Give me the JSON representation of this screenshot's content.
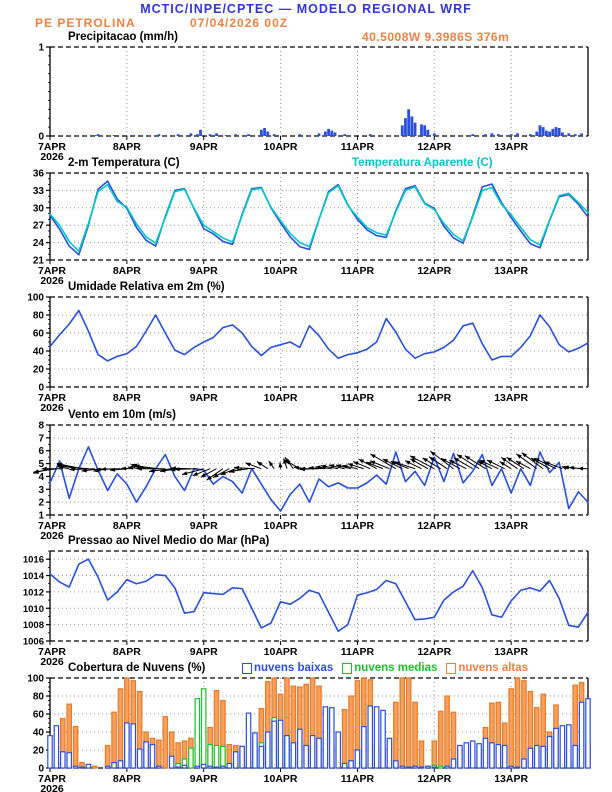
{
  "header": {
    "model_title": "MCTIC/INPE/CPTEC — MODELO REGIONAL WRF",
    "station": "PE PETROLINA",
    "run": "07/04/2026 00Z",
    "location": "40.5008W 9.3986S 376m"
  },
  "colors": {
    "header_blue": "#3434d6",
    "orange": "#f08142",
    "line_blue": "#2b4fdd",
    "cyan": "#00c8c8",
    "green": "#1dc12d",
    "bar_orange_fill": "#f5a05c",
    "bar_orange_edge": "#e87a28",
    "grid": "#999999",
    "black": "#000000"
  },
  "xaxis": {
    "labels": [
      "7APR",
      "8APR",
      "9APR",
      "10APR",
      "11APR",
      "12APR",
      "13APR"
    ],
    "year": "2026",
    "total_hours": 168
  },
  "chart_data": [
    {
      "type": "bar",
      "title": "Precipitacao (mm/h)",
      "ylabel": "",
      "xlabel": "",
      "ylim": [
        0,
        1
      ],
      "yticks": [
        0,
        1
      ],
      "yminor": 0.1,
      "bars_hour_value": [
        [
          14,
          0.01
        ],
        [
          15,
          0.02
        ],
        [
          20,
          0.01
        ],
        [
          26,
          0.01
        ],
        [
          28,
          0.01
        ],
        [
          34,
          0.02
        ],
        [
          36,
          0.01
        ],
        [
          40,
          0.02
        ],
        [
          44,
          0.03
        ],
        [
          46,
          0.02
        ],
        [
          47,
          0.07
        ],
        [
          50,
          0.02
        ],
        [
          52,
          0.03
        ],
        [
          55,
          0.01
        ],
        [
          58,
          0.02
        ],
        [
          62,
          0.02
        ],
        [
          66,
          0.07
        ],
        [
          67,
          0.09
        ],
        [
          68,
          0.05
        ],
        [
          70,
          0.02
        ],
        [
          78,
          0.02
        ],
        [
          84,
          0.03
        ],
        [
          86,
          0.05
        ],
        [
          87,
          0.08
        ],
        [
          88,
          0.06
        ],
        [
          89,
          0.04
        ],
        [
          92,
          0.02
        ],
        [
          100,
          0.02
        ],
        [
          110,
          0.12
        ],
        [
          111,
          0.2
        ],
        [
          112,
          0.3
        ],
        [
          113,
          0.22
        ],
        [
          114,
          0.15
        ],
        [
          116,
          0.13
        ],
        [
          117,
          0.12
        ],
        [
          118,
          0.07
        ],
        [
          120,
          0.03
        ],
        [
          126,
          0.01
        ],
        [
          132,
          0.02
        ],
        [
          136,
          0.02
        ],
        [
          138,
          0.03
        ],
        [
          140,
          0.02
        ],
        [
          144,
          0.02
        ],
        [
          146,
          0.03
        ],
        [
          150,
          0.02
        ],
        [
          152,
          0.05
        ],
        [
          153,
          0.12
        ],
        [
          154,
          0.1
        ],
        [
          155,
          0.06
        ],
        [
          156,
          0.05
        ],
        [
          157,
          0.08
        ],
        [
          158,
          0.1
        ],
        [
          159,
          0.09
        ],
        [
          160,
          0.04
        ],
        [
          162,
          0.03
        ],
        [
          164,
          0.02
        ],
        [
          166,
          0.03
        ]
      ]
    },
    {
      "type": "line",
      "title": "2-m Temperatura (C)",
      "right_title": "Temperatura Aparente (C)",
      "ylim": [
        21,
        36
      ],
      "yticks": [
        21,
        24,
        27,
        30,
        33,
        36
      ],
      "yminor": 1,
      "step_h": 3,
      "series": [
        {
          "name": "2-m Temperatura (C)",
          "color": "#2b4fdd",
          "values": [
            28.7,
            26.3,
            23.4,
            21.9,
            27.0,
            33.2,
            34.6,
            31.5,
            29.9,
            26.6,
            24.4,
            23.4,
            28.5,
            33.0,
            33.3,
            29.8,
            26.4,
            25.5,
            24.2,
            23.7,
            28.9,
            33.3,
            33.5,
            30.0,
            27.4,
            25.0,
            23.3,
            22.8,
            28.0,
            32.8,
            34.0,
            30.5,
            28.0,
            26.2,
            25.2,
            24.9,
            29.5,
            33.3,
            33.8,
            30.8,
            29.9,
            26.8,
            24.8,
            23.9,
            28.6,
            33.6,
            34.1,
            30.9,
            28.3,
            26.0,
            23.8,
            23.1,
            27.8,
            31.9,
            32.3,
            30.6,
            28.4
          ]
        },
        {
          "name": "Temperatura Aparente (C)",
          "color": "#00c8c8",
          "values": [
            28.9,
            27.0,
            24.2,
            22.5,
            27.3,
            32.8,
            34.0,
            31.1,
            30.1,
            27.2,
            25.0,
            23.9,
            28.3,
            32.8,
            33.2,
            29.9,
            27.0,
            25.9,
            24.8,
            24.1,
            28.7,
            33.1,
            33.4,
            30.1,
            27.8,
            25.6,
            24.0,
            23.3,
            28.0,
            32.6,
            33.8,
            30.4,
            28.4,
            26.6,
            25.7,
            25.3,
            29.3,
            33.0,
            33.6,
            30.7,
            29.7,
            27.3,
            25.4,
            24.3,
            28.4,
            33.0,
            33.5,
            30.6,
            28.8,
            26.6,
            24.5,
            23.6,
            27.9,
            32.1,
            32.5,
            30.9,
            29.2
          ]
        }
      ]
    },
    {
      "type": "line",
      "title": "Umidade Relativa em 2m (%)",
      "ylim": [
        0,
        100
      ],
      "yticks": [
        0,
        20,
        40,
        60,
        80,
        100
      ],
      "yminor": 5,
      "step_h": 3,
      "series": [
        {
          "name": "Umidade Relativa",
          "color": "#2b4fdd",
          "values": [
            45,
            58,
            70,
            85,
            62,
            36,
            29,
            34,
            37,
            45,
            62,
            80,
            60,
            41,
            36,
            44,
            50,
            55,
            66,
            69,
            60,
            45,
            35,
            44,
            47,
            50,
            44,
            68,
            57,
            42,
            32,
            36,
            38,
            42,
            50,
            76,
            61,
            42,
            32,
            37,
            39,
            44,
            52,
            68,
            71,
            48,
            30,
            34,
            34,
            44,
            57,
            80,
            67,
            47,
            39,
            43,
            49
          ]
        }
      ]
    },
    {
      "type": "wind",
      "title": "Vento em 10m (m/s)",
      "ylim": [
        1,
        8
      ],
      "yticks": [
        1,
        2,
        3,
        4,
        5,
        6,
        7,
        8
      ],
      "yminor": 0.5,
      "step_h": 3,
      "arrow_anchor_value": 4.6,
      "speed": [
        3.5,
        5.2,
        2.3,
        4.6,
        6.3,
        4.5,
        2.9,
        4.2,
        3.4,
        2.0,
        3.2,
        4.6,
        5.7,
        4.0,
        2.9,
        4.6,
        4.5,
        3.4,
        4.0,
        3.6,
        2.7,
        4.6,
        3.4,
        2.2,
        1.3,
        2.6,
        3.4,
        2.0,
        3.8,
        3.2,
        3.5,
        3.1,
        3.1,
        3.5,
        4.1,
        3.4,
        5.9,
        3.6,
        4.4,
        3.3,
        5.5,
        3.6,
        5.8,
        3.5,
        4.4,
        5.7,
        3.3,
        4.6,
        2.7,
        4.6,
        3.3,
        5.9,
        4.3,
        5.1,
        1.5,
        2.8,
        2.0
      ],
      "dir_deg_to": [
        195,
        185,
        170,
        165,
        175,
        185,
        190,
        180,
        185,
        175,
        165,
        170,
        180,
        190,
        185,
        175,
        195,
        205,
        215,
        205,
        195,
        185,
        160,
        140,
        95,
        115,
        150,
        185,
        180,
        175,
        170,
        165,
        168,
        160,
        152,
        162,
        150,
        155,
        162,
        150,
        152,
        148,
        143,
        155,
        150,
        146,
        152,
        157,
        148,
        144,
        152,
        140,
        150,
        156,
        164,
        172,
        178
      ]
    },
    {
      "type": "line",
      "title": "Pressao ao Nivel Medio do Mar (hPa)",
      "ylim": [
        1006,
        1017
      ],
      "yticks": [
        1006,
        1008,
        1010,
        1012,
        1014,
        1016
      ],
      "yminor": 1,
      "step_h": 3,
      "series": [
        {
          "name": "Pressao",
          "color": "#2b4fdd",
          "values": [
            1014.2,
            1013.2,
            1012.6,
            1015.4,
            1016.0,
            1013.8,
            1011.0,
            1012.0,
            1013.5,
            1013.0,
            1013.3,
            1014.1,
            1014.0,
            1012.5,
            1009.4,
            1009.6,
            1011.9,
            1011.8,
            1011.7,
            1012.5,
            1012.4,
            1010.0,
            1007.6,
            1008.2,
            1010.8,
            1010.5,
            1011.2,
            1012.2,
            1011.8,
            1009.5,
            1007.2,
            1008.0,
            1011.6,
            1011.9,
            1012.3,
            1013.4,
            1013.0,
            1010.8,
            1008.6,
            1008.7,
            1008.9,
            1011.0,
            1012.0,
            1012.7,
            1014.6,
            1012.5,
            1009.2,
            1008.9,
            1010.9,
            1012.2,
            1012.5,
            1012.1,
            1013.4,
            1011.2,
            1007.9,
            1007.7,
            1009.5
          ]
        }
      ]
    },
    {
      "type": "cloud_bars",
      "title": "Cobertura de Nuvens (%)",
      "ylim": [
        0,
        100
      ],
      "yticks": [
        0,
        20,
        40,
        60,
        80,
        100
      ],
      "yminor": 5,
      "step_h": 2,
      "legend": [
        {
          "label": "nuvens baixas",
          "color": "#2b4fdd"
        },
        {
          "label": "nuvens medias",
          "color": "#1dc12d"
        },
        {
          "label": "nuvens altas",
          "color": "#f08142"
        }
      ],
      "series": [
        {
          "name": "nuvens altas",
          "color": "#e87a28",
          "fill": "#f5a05c",
          "values": [
            0,
            5,
            55,
            71,
            46,
            6,
            3,
            2,
            0,
            25,
            62,
            88,
            100,
            97,
            85,
            40,
            33,
            31,
            57,
            40,
            28,
            30,
            33,
            13,
            20,
            45,
            86,
            75,
            26,
            25,
            24,
            8,
            30,
            66,
            96,
            100,
            82,
            100,
            91,
            90,
            93,
            100,
            91,
            65,
            27,
            22,
            65,
            80,
            97,
            100,
            98,
            25,
            18,
            28,
            73,
            100,
            100,
            73,
            30,
            0,
            30,
            63,
            80,
            62,
            20,
            3,
            0,
            25,
            45,
            72,
            73,
            50,
            88,
            100,
            97,
            85,
            67,
            82,
            40,
            70,
            25,
            10,
            92,
            95,
            28
          ]
        },
        {
          "name": "nuvens medias",
          "color": "#1dc12d",
          "fill": "#ffffff",
          "values": [
            0,
            0,
            0,
            0,
            0,
            0,
            0,
            0,
            0,
            0,
            0,
            0,
            0,
            0,
            0,
            0,
            0,
            0,
            0,
            0,
            5,
            10,
            22,
            77,
            88,
            26,
            25,
            24,
            5,
            0,
            0,
            0,
            9,
            28,
            36,
            56,
            20,
            35,
            8,
            0,
            0,
            0,
            0,
            0,
            0,
            0,
            0,
            0,
            4,
            5,
            0,
            0,
            0,
            0,
            0,
            0,
            0,
            0,
            0,
            2,
            3,
            2,
            0,
            0,
            0,
            0,
            0,
            0,
            0,
            0,
            0,
            0,
            0,
            0,
            0,
            0,
            0,
            2,
            0,
            5,
            6,
            8,
            5,
            2,
            0
          ]
        },
        {
          "name": "nuvens baixas",
          "color": "#2b4fdd",
          "fill": "#ffffff",
          "values": [
            36,
            47,
            18,
            17,
            2,
            1,
            4,
            0,
            0,
            2,
            6,
            8,
            50,
            49,
            21,
            29,
            26,
            2,
            0,
            13,
            1,
            3,
            0,
            2,
            4,
            2,
            1,
            2,
            5,
            18,
            24,
            61,
            39,
            24,
            40,
            52,
            53,
            36,
            28,
            43,
            25,
            36,
            33,
            68,
            67,
            40,
            5,
            8,
            20,
            46,
            69,
            68,
            64,
            33,
            8,
            2,
            1,
            2,
            1,
            2,
            1,
            0,
            2,
            10,
            25,
            28,
            30,
            27,
            33,
            28,
            26,
            25,
            2,
            1,
            10,
            22,
            25,
            24,
            35,
            44,
            47,
            48,
            25,
            73,
            77
          ]
        }
      ]
    }
  ]
}
